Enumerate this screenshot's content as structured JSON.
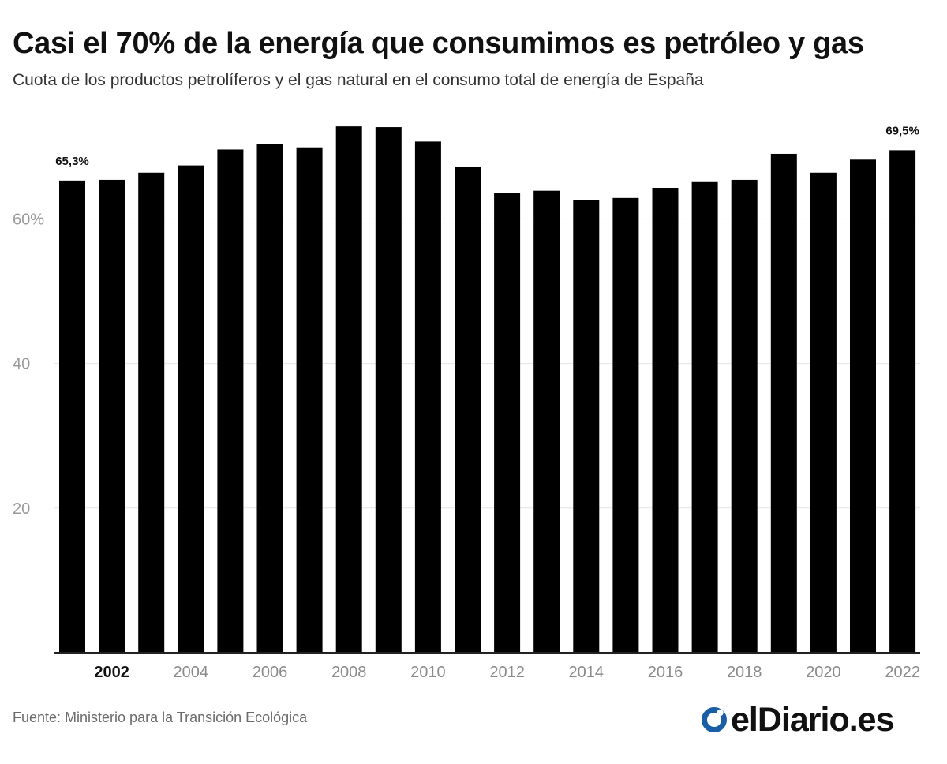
{
  "header": {
    "title": "Casi el 70% de la energía que consumimos es petróleo y gas",
    "subtitle": "Cuota de los productos petrolíferos y el gas natural en el consumo total de energía de España"
  },
  "footer": {
    "source": "Fuente: Ministerio para la Transición Ecológica",
    "brand": "elDiario.es",
    "brand_color": "#1a5fa6"
  },
  "chart_data": {
    "type": "bar",
    "title": "Casi el 70% de la energía que consumimos es petróleo y gas",
    "subtitle": "Cuota de los productos petrolíferos y el gas natural en el consumo total de energía de España",
    "xlabel": "",
    "ylabel": "",
    "ylim": [
      0,
      75
    ],
    "grid": true,
    "bar_color": "#000000",
    "categories": [
      "2001",
      "2002",
      "2003",
      "2004",
      "2005",
      "2006",
      "2007",
      "2008",
      "2009",
      "2010",
      "2011",
      "2012",
      "2013",
      "2014",
      "2015",
      "2016",
      "2017",
      "2018",
      "2019",
      "2020",
      "2021",
      "2022"
    ],
    "values": [
      65.3,
      65.4,
      66.4,
      67.4,
      69.6,
      70.4,
      69.9,
      72.8,
      72.7,
      70.7,
      67.2,
      63.6,
      63.9,
      62.6,
      62.9,
      64.3,
      65.2,
      65.4,
      69.0,
      66.4,
      68.2,
      69.5
    ],
    "y_ticks": [
      {
        "value": 20,
        "label": "20"
      },
      {
        "value": 40,
        "label": "40"
      },
      {
        "value": 60,
        "label": "60%"
      }
    ],
    "x_tick_labels": [
      {
        "category": "2002",
        "label": "2002",
        "bold": true
      },
      {
        "category": "2004",
        "label": "2004",
        "bold": false
      },
      {
        "category": "2006",
        "label": "2006",
        "bold": false
      },
      {
        "category": "2008",
        "label": "2008",
        "bold": false
      },
      {
        "category": "2010",
        "label": "2010",
        "bold": false
      },
      {
        "category": "2012",
        "label": "2012",
        "bold": false
      },
      {
        "category": "2014",
        "label": "2014",
        "bold": false
      },
      {
        "category": "2016",
        "label": "2016",
        "bold": false
      },
      {
        "category": "2018",
        "label": "2018",
        "bold": false
      },
      {
        "category": "2020",
        "label": "2020",
        "bold": false
      },
      {
        "category": "2022",
        "label": "2022",
        "bold": false
      }
    ],
    "annotations": [
      {
        "category": "2001",
        "label": "65,3%"
      },
      {
        "category": "2022",
        "label": "69,5%"
      }
    ]
  }
}
